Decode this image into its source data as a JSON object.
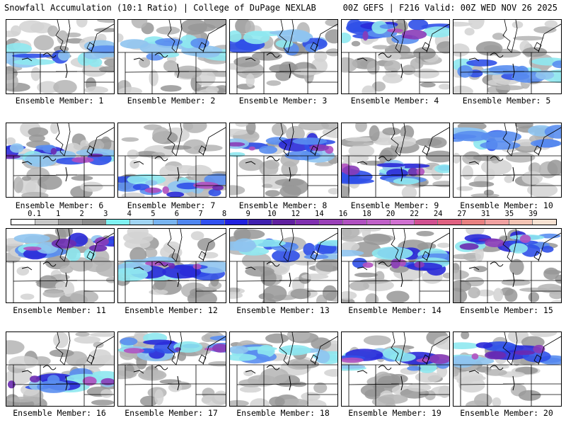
{
  "header": {
    "left": "Snowfall Accumulation (10:1 Ratio) | College of DuPage NEXLAB",
    "right": "00Z GEFS | F216 Valid: 00Z WED NOV 26 2025"
  },
  "colorbar": {
    "labels": [
      "0.1",
      "1",
      "2",
      "3",
      "4",
      "5",
      "6",
      "7",
      "8",
      "9",
      "10",
      "12",
      "14",
      "16",
      "18",
      "20",
      "22",
      "24",
      "27",
      "31",
      "35",
      "39"
    ],
    "colors": [
      "#ffffff",
      "#c8c8c8",
      "#a0a0a0",
      "#8c8c8c",
      "#7ff2f2",
      "#a0d4f2",
      "#78b4f0",
      "#4f86f0",
      "#3050f0",
      "#2020e0",
      "#4020b0",
      "#6020a0",
      "#8030b0",
      "#9a40b8",
      "#b050c0",
      "#c060c8",
      "#d070d0",
      "#d05090",
      "#e06080",
      "#e88080",
      "#f0a0a0",
      "#f4c4b4",
      "#f8e2d2"
    ]
  },
  "members": [
    "Ensemble Member: 1",
    "Ensemble Member: 2",
    "Ensemble Member: 3",
    "Ensemble Member: 4",
    "Ensemble Member: 5",
    "Ensemble Member: 6",
    "Ensemble Member: 7",
    "Ensemble Member: 8",
    "Ensemble Member: 9",
    "Ensemble Member: 10",
    "Ensemble Member: 11",
    "Ensemble Member: 12",
    "Ensemble Member: 13",
    "Ensemble Member: 14",
    "Ensemble Member: 15",
    "Ensemble Member: 16",
    "Ensemble Member: 17",
    "Ensemble Member: 18",
    "Ensemble Member: 19",
    "Ensemble Member: 20"
  ]
}
